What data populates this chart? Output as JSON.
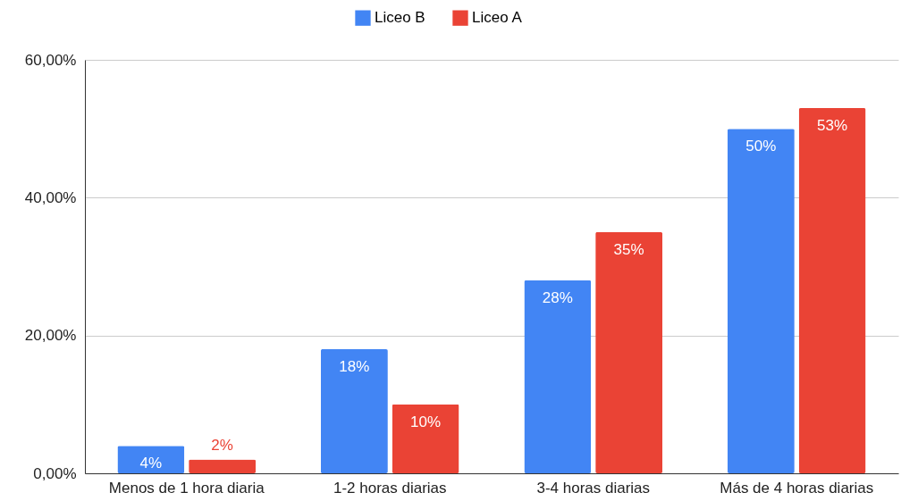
{
  "chart_data": {
    "type": "bar",
    "categories": [
      "Menos de 1 hora diaria",
      "1-2 horas diarias",
      "3-4 horas diarias",
      "Más de 4 horas diarias"
    ],
    "series": [
      {
        "name": "Liceo B",
        "color": "#4285f4",
        "values": [
          4,
          18,
          28,
          50
        ],
        "value_labels": [
          "4%",
          "18%",
          "28%",
          "50%"
        ]
      },
      {
        "name": "Liceo A",
        "color": "#ea4335",
        "values": [
          2,
          10,
          35,
          53
        ],
        "value_labels": [
          "2%",
          "10%",
          "35%",
          "53%"
        ]
      }
    ],
    "ylim": [
      0,
      60
    ],
    "yticks": [
      {
        "value": 0,
        "label": "0,00%"
      },
      {
        "value": 20,
        "label": "20,00%"
      },
      {
        "value": 40,
        "label": "40,00%"
      },
      {
        "value": 60,
        "label": "60,00%"
      }
    ],
    "grid": "y",
    "legend": "top"
  }
}
